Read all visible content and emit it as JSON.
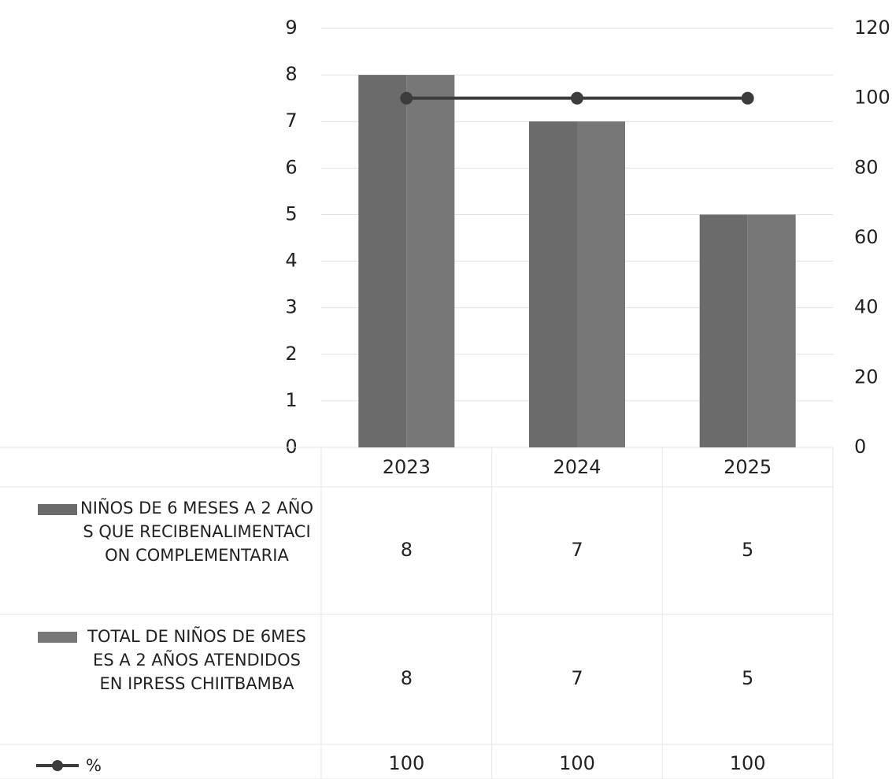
{
  "chart_data": {
    "type": "bar",
    "categories": [
      "2023",
      "2024",
      "2025"
    ],
    "series": [
      {
        "name": "NIÑOS DE 6 MESES A 2 AÑOS QUE RECIBENALIMENTACION COMPLEMENTARIA",
        "color": "#6b6b6b",
        "values": [
          8,
          7,
          5
        ]
      },
      {
        "name": "TOTAL DE NIÑOS DE 6MESES A 2 AÑOS ATENDIDOS EN IPRESS CHIITBAMBA",
        "color": "#777777",
        "values": [
          8,
          7,
          5
        ]
      },
      {
        "name": "%",
        "color": "#3c3c3c",
        "values": [
          100,
          100,
          100
        ],
        "axis": "y2",
        "type": "line"
      }
    ],
    "ylim": [
      0,
      9
    ],
    "yticks": [
      0,
      1,
      2,
      3,
      4,
      5,
      6,
      7,
      8,
      9
    ],
    "y2lim": [
      0,
      120
    ],
    "y2ticks": [
      0,
      20,
      40,
      60,
      80,
      100,
      120
    ],
    "grid": true,
    "data_table": true
  }
}
